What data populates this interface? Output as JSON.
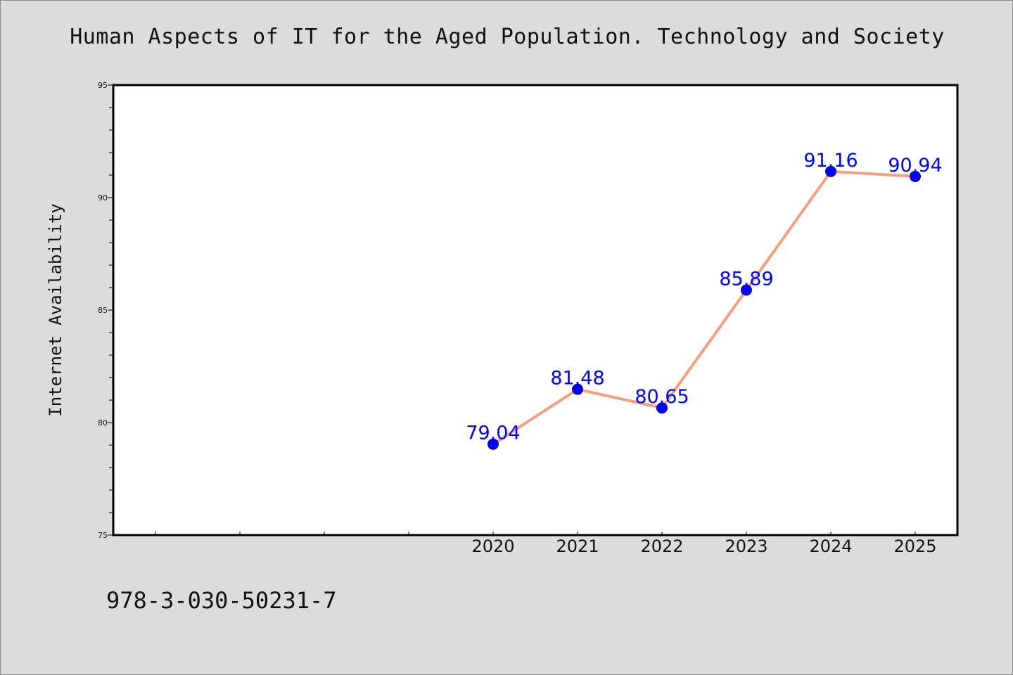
{
  "page": {
    "background": "#dcdcdc",
    "footer_text": "978-3-030-50231-7"
  },
  "chart_data": {
    "type": "line",
    "title": "Human Aspects of IT for the Aged Population. Technology and Society",
    "xlabel": "",
    "ylabel": "Internet Availability",
    "categories": [
      "2020",
      "2021",
      "2022",
      "2023",
      "2024",
      "2025"
    ],
    "x_axis_slots": 10,
    "values": [
      79.04,
      81.48,
      80.65,
      85.89,
      91.16,
      90.94
    ],
    "value_labels": [
      "79.04",
      "81.48",
      "80.65",
      "85.89",
      "91.16",
      "90.94"
    ],
    "ylim": [
      75,
      95
    ],
    "y_ticks": [
      75,
      80,
      85,
      90,
      95
    ],
    "y_minor_step": 1,
    "grid": false,
    "legend": "none",
    "colors": {
      "line": "#f4a07e",
      "marker": "#0000ff",
      "marker_edge": "#000080",
      "data_label": "#0000ff",
      "plot_background": "#ffffff",
      "frame": "#000000"
    }
  }
}
